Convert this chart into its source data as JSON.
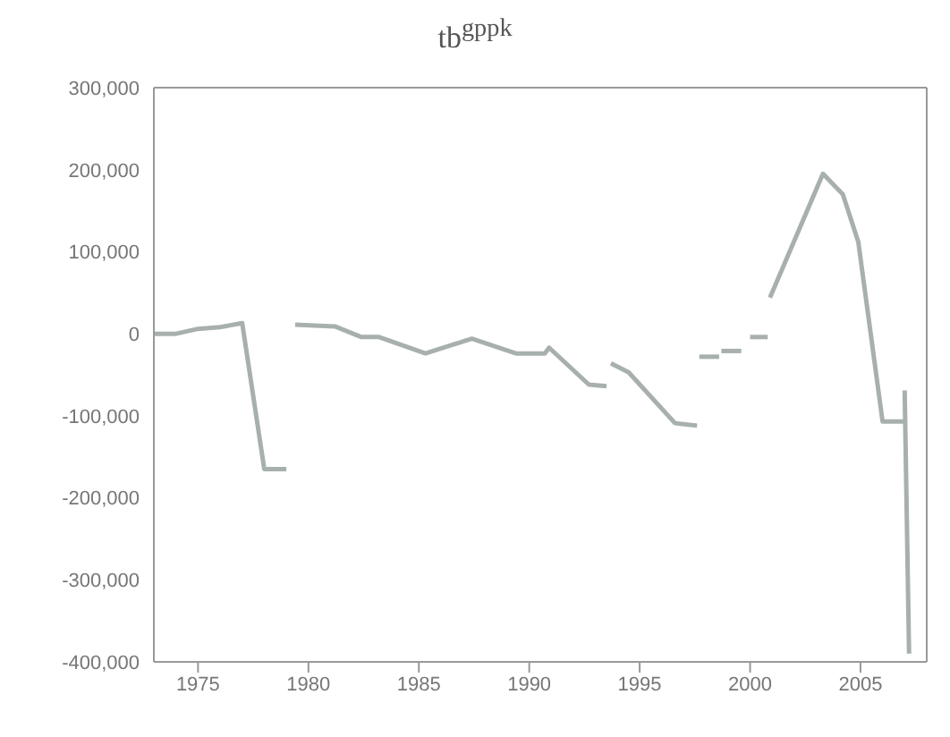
{
  "chart_data": {
    "type": "line",
    "title": "tb$^{gppk}$",
    "xlim": [
      1973,
      2008
    ],
    "xticks": [
      1975,
      1980,
      1985,
      1990,
      1995,
      2000,
      2005
    ],
    "ylim": [
      -400000,
      300000
    ],
    "yticks": [
      {
        "value": -400000,
        "label": "-400,000"
      },
      {
        "value": -300000,
        "label": "-300,000"
      },
      {
        "value": -200000,
        "label": "-200,000"
      },
      {
        "value": -100000,
        "label": "-100,000"
      },
      {
        "value": 0,
        "label": "0"
      },
      {
        "value": 100000,
        "label": "100,000"
      },
      {
        "value": 200000,
        "label": "200,000"
      },
      {
        "value": 300000,
        "label": "300,000"
      }
    ],
    "marker": "none",
    "line_style": "solid",
    "series": [
      {
        "color": "#a8b0ae",
        "x": [
          1973,
          1974,
          1975,
          1976,
          1977,
          1978,
          1979
        ],
        "values": [
          0,
          0,
          6000,
          8000,
          13000,
          -165000,
          -165000
        ]
      },
      {
        "color": "#a8b0ae",
        "x": [
          1979.4,
          1981.2,
          1982.4,
          1983.2,
          1985.3,
          1987.4,
          1989.4,
          1990.7,
          1990.9,
          1992.7,
          1993.5
        ],
        "values": [
          11000,
          9000,
          -4000,
          -4000,
          -24000,
          -6000,
          -24000,
          -24000,
          -17000,
          -62000,
          -64000
        ]
      },
      {
        "color": "#a8b0ae",
        "x": [
          1993.7,
          1994.5,
          1996.6,
          1997.6
        ],
        "values": [
          -36000,
          -47000,
          -109000,
          -112000
        ]
      },
      {
        "color": "#a8b0ae",
        "x": [
          1997.7,
          1998.6
        ],
        "values": [
          -28000,
          -28000
        ]
      },
      {
        "color": "#a8b0ae",
        "x": [
          1998.7,
          1999.6
        ],
        "values": [
          -21000,
          -21000
        ]
      },
      {
        "color": "#a8b0ae",
        "x": [
          2000,
          2000.8
        ],
        "values": [
          -4000,
          -4000
        ]
      },
      {
        "color": "#a8b0ae",
        "x": [
          2000.9,
          2003.3,
          2004.2,
          2004.9,
          2006,
          2007.1
        ],
        "values": [
          44000,
          195000,
          170000,
          112000,
          -107000,
          -107000
        ]
      },
      {
        "color": "#a8b0ae",
        "x": [
          2007,
          2007.2
        ],
        "values": [
          -69000,
          -390000
        ]
      }
    ]
  }
}
